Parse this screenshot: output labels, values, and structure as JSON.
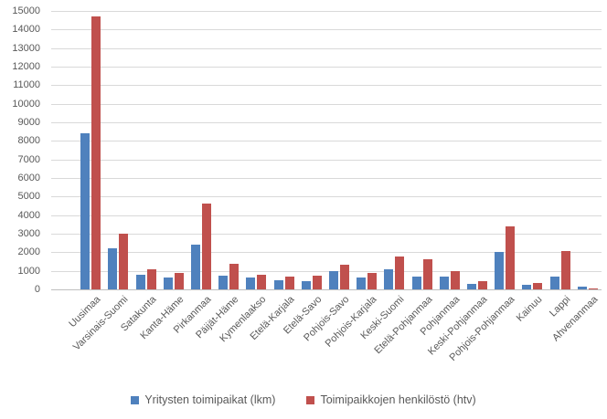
{
  "chart_data": {
    "type": "bar",
    "title": "",
    "xlabel": "",
    "ylabel": "",
    "ylim": [
      0,
      15000
    ],
    "ytick_step": 1000,
    "yticks": [
      "0",
      "1000",
      "2000",
      "3000",
      "4000",
      "5000",
      "6000",
      "7000",
      "8000",
      "9000",
      "10000",
      "11000",
      "12000",
      "13000",
      "14000",
      "15000"
    ],
    "grid": true,
    "legend_position": "bottom",
    "categories": [
      "Uusimaa",
      "Varsinais-Suomi",
      "Satakunta",
      "Kanta-Häme",
      "Pirkanmaa",
      "Päijät-Häme",
      "Kymenlaakso",
      "Etelä-Karjala",
      "Etelä-Savo",
      "Pohjois-Savo",
      "Pohjois-Karjala",
      "Keski-Suomi",
      "Etelä-Pohjanmaa",
      "Pohjanmaa",
      "Keski-Pohjanmaa",
      "Pohjois-Pohjanmaa",
      "Kainuu",
      "Lappi",
      "Ahvenanmaa"
    ],
    "series": [
      {
        "name": "Yritysten toimipaikat (lkm)",
        "color": "#4F81BD",
        "values": [
          8400,
          2200,
          800,
          650,
          2400,
          750,
          650,
          500,
          450,
          1000,
          650,
          1100,
          700,
          700,
          300,
          2000,
          250,
          700,
          150
        ]
      },
      {
        "name": "Toimipaikkojen henkilöstö (htv)",
        "color": "#C0504D",
        "values": [
          14700,
          3000,
          1100,
          900,
          4600,
          1400,
          800,
          700,
          750,
          1350,
          900,
          1750,
          1600,
          1000,
          450,
          3400,
          350,
          2050,
          50
        ]
      }
    ],
    "colors": {
      "background": "#FFFFFF",
      "gridline": "#D9D9D9",
      "axis_line": "#BFBFBF",
      "tick_label": "#595959",
      "legend_text": "#595959"
    }
  }
}
